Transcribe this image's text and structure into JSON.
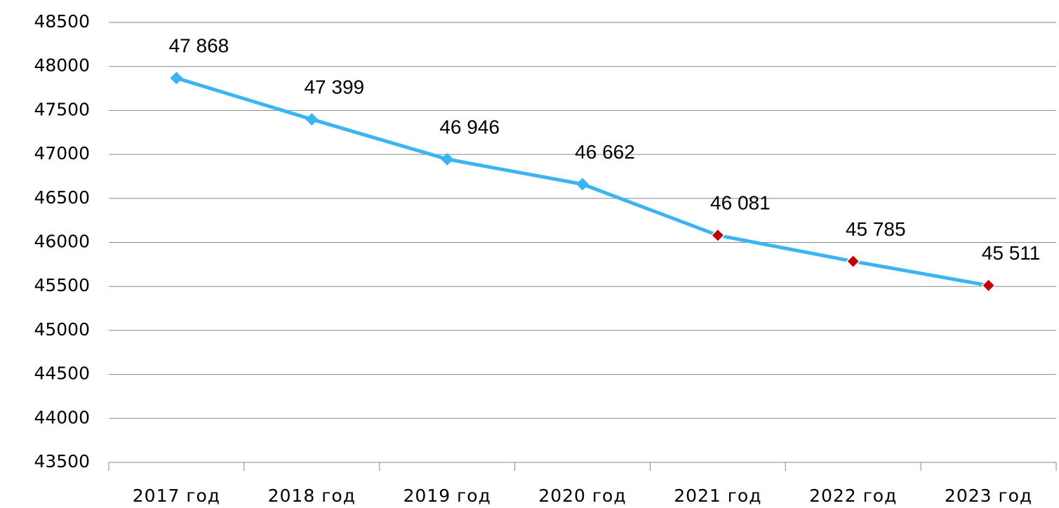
{
  "chart_data": {
    "type": "line",
    "categories": [
      "2017 год",
      "2018 год",
      "2019 год",
      "2020 год",
      "2021 год",
      "2022 год",
      "2023 год"
    ],
    "series": [
      {
        "color": "#3cb4f2",
        "values": [
          47868,
          47399,
          46946,
          46662,
          46081,
          45785,
          45511
        ],
        "value_labels": [
          "47 868",
          "47 399",
          "46 946",
          "46 662",
          "46 081",
          "45 785",
          "45 511"
        ],
        "marker_colors": [
          "#3cb4f2",
          "#3cb4f2",
          "#3cb4f2",
          "#3cb4f2",
          "#c00000",
          "#c00000",
          "#c00000"
        ]
      }
    ],
    "ylim": [
      43500,
      48500
    ],
    "yticks": [
      43500,
      44000,
      44500,
      45000,
      45500,
      46000,
      46500,
      47000,
      47500,
      48000,
      48500
    ],
    "grid": true
  }
}
